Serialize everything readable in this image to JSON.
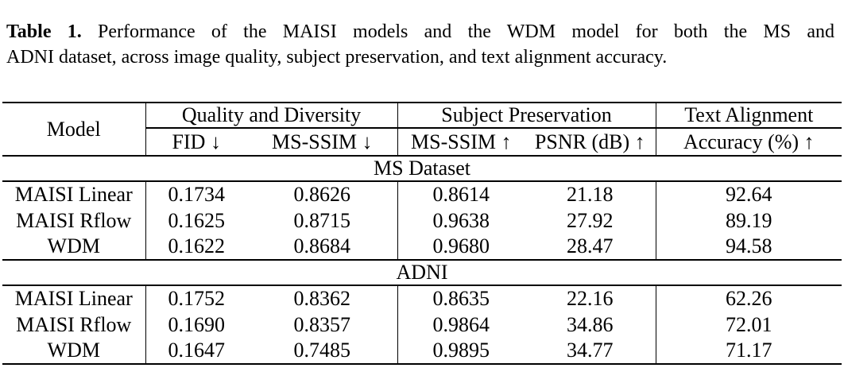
{
  "caption": {
    "label": "Table 1.",
    "line1_rest": "Performance of the MAISI models and the WDM model for both the MS and",
    "line2": "ADNI dataset, across image quality, subject preservation, and text alignment accuracy."
  },
  "table": {
    "header": {
      "model": "Model",
      "groups": [
        {
          "label": "Quality and Diversity",
          "cols": [
            "FID ↓",
            "MS-SSIM ↓"
          ]
        },
        {
          "label": "Subject Preservation",
          "cols": [
            "MS-SSIM ↑",
            "PSNR (dB) ↑"
          ]
        },
        {
          "label": "Text Alignment",
          "cols": [
            "Accuracy (%) ↑"
          ]
        }
      ]
    },
    "sections": [
      {
        "title": "MS Dataset",
        "rows": [
          {
            "model": "MAISI Linear",
            "values": [
              "0.1734",
              "0.8626",
              "0.8614",
              "21.18",
              "92.64"
            ],
            "bold": [
              false,
              true,
              false,
              false,
              false
            ]
          },
          {
            "model": "MAISI Rflow",
            "values": [
              "0.1625",
              "0.8715",
              "0.9638",
              "27.92",
              "89.19"
            ],
            "bold": [
              false,
              false,
              false,
              false,
              false
            ]
          },
          {
            "model": "WDM",
            "values": [
              "0.1622",
              "0.8684",
              "0.9680",
              "28.47",
              "94.58"
            ],
            "bold": [
              true,
              false,
              true,
              true,
              true
            ]
          }
        ]
      },
      {
        "title": "ADNI",
        "rows": [
          {
            "model": "MAISI Linear",
            "values": [
              "0.1752",
              "0.8362",
              "0.8635",
              "22.16",
              "62.26"
            ],
            "bold": [
              false,
              false,
              false,
              false,
              false
            ]
          },
          {
            "model": "MAISI Rflow",
            "values": [
              "0.1690",
              "0.8357",
              "0.9864",
              "34.86",
              "72.01"
            ],
            "bold": [
              false,
              false,
              false,
              true,
              true
            ]
          },
          {
            "model": "WDM",
            "values": [
              "0.1647",
              "0.7485",
              "0.9895",
              "34.77",
              "71.17"
            ],
            "bold": [
              true,
              true,
              true,
              false,
              false
            ]
          }
        ]
      }
    ]
  }
}
